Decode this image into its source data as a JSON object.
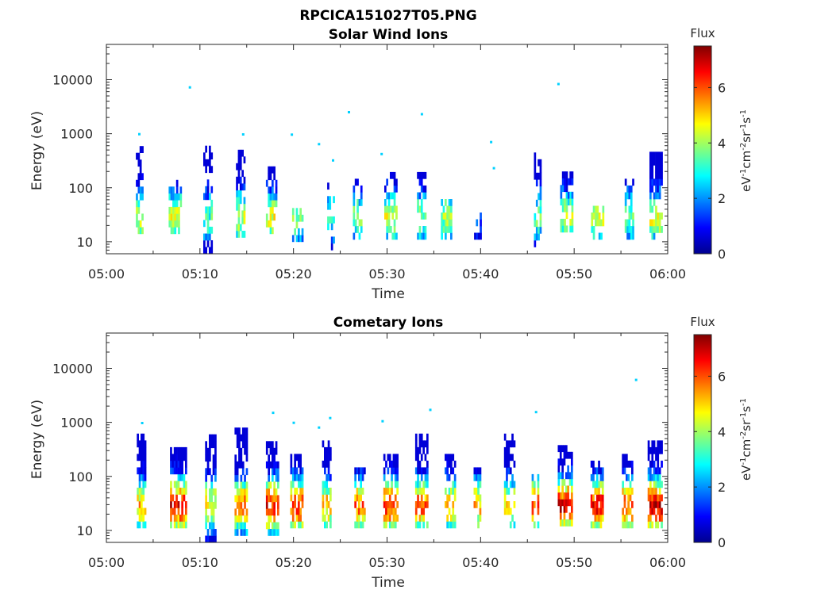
{
  "figure": {
    "title": "RPCICA151027T05.PNG"
  },
  "chart_data": [
    {
      "type": "heatmap",
      "title": "Solar Wind Ions",
      "xlabel": "Time",
      "ylabel": "Energy (eV)",
      "x_ticks": [
        "05:00",
        "05:10",
        "05:20",
        "05:30",
        "05:40",
        "05:50",
        "06:00"
      ],
      "x_range": [
        "05:00",
        "06:00"
      ],
      "y_scale": "log",
      "y_ticks": [
        10,
        100,
        1000,
        10000
      ],
      "y_tick_labels": [
        "10",
        "100",
        "1000",
        "10000"
      ],
      "ylim": [
        6,
        45000
      ],
      "colorbar": {
        "title": "Flux",
        "label": "eV",
        "range": [
          0,
          7.5
        ],
        "ticks": [
          0,
          2,
          4,
          6
        ],
        "tick_labels": [
          "0",
          "2",
          "4",
          "6"
        ],
        "colormap": "jet"
      },
      "colormap_stops": [
        "#00008f",
        "#0000ff",
        "#0080ff",
        "#00ffff",
        "#80ff80",
        "#ffff00",
        "#ff8000",
        "#ff0000",
        "#800000"
      ],
      "bursts": [
        {
          "t": 3.5,
          "w": 0.7,
          "lo": 14,
          "hi": 480,
          "peak": 4.6,
          "dens": 0.55
        },
        {
          "t": 7.3,
          "w": 1.3,
          "lo": 14,
          "hi": 120,
          "peak": 5.0,
          "dens": 0.65
        },
        {
          "t": 10.8,
          "w": 0.9,
          "lo": 6,
          "hi": 500,
          "peak": 3.6,
          "dens": 0.5
        },
        {
          "t": 14.3,
          "w": 0.9,
          "lo": 12,
          "hi": 400,
          "peak": 4.7,
          "dens": 0.6
        },
        {
          "t": 17.6,
          "w": 1.1,
          "lo": 14,
          "hi": 200,
          "peak": 4.9,
          "dens": 0.6
        },
        {
          "t": 20.4,
          "w": 1.1,
          "lo": 10,
          "hi": 40,
          "peak": 4.4,
          "dens": 0.6
        },
        {
          "t": 23.9,
          "w": 0.6,
          "lo": 7,
          "hi": 120,
          "peak": 3.6,
          "dens": 0.45
        },
        {
          "t": 26.8,
          "w": 0.9,
          "lo": 11,
          "hi": 130,
          "peak": 4.1,
          "dens": 0.55
        },
        {
          "t": 30.3,
          "w": 1.2,
          "lo": 11,
          "hi": 150,
          "peak": 4.6,
          "dens": 0.6
        },
        {
          "t": 33.6,
          "w": 0.8,
          "lo": 11,
          "hi": 180,
          "peak": 4.2,
          "dens": 0.55
        },
        {
          "t": 36.3,
          "w": 1.1,
          "lo": 11,
          "hi": 50,
          "peak": 4.3,
          "dens": 0.6
        },
        {
          "t": 39.6,
          "w": 0.6,
          "lo": 11,
          "hi": 30,
          "peak": 1.6,
          "dens": 0.6
        },
        {
          "t": 46.0,
          "w": 0.6,
          "lo": 8,
          "hi": 400,
          "peak": 3.8,
          "dens": 0.5
        },
        {
          "t": 49.1,
          "w": 1.2,
          "lo": 15,
          "hi": 200,
          "peak": 4.6,
          "dens": 0.6
        },
        {
          "t": 52.4,
          "w": 1.2,
          "lo": 11,
          "hi": 45,
          "peak": 4.6,
          "dens": 0.6
        },
        {
          "t": 55.8,
          "w": 0.8,
          "lo": 11,
          "hi": 140,
          "peak": 4.1,
          "dens": 0.55
        },
        {
          "t": 58.7,
          "w": 1.3,
          "lo": 11,
          "hi": 450,
          "peak": 4.8,
          "dens": 0.65
        }
      ],
      "isolated_points": [
        {
          "t": 8.9,
          "e": 7200
        },
        {
          "t": 48.3,
          "e": 8300
        },
        {
          "t": 25.9,
          "e": 2500
        },
        {
          "t": 33.7,
          "e": 2300
        },
        {
          "t": 3.5,
          "e": 980
        },
        {
          "t": 14.6,
          "e": 970
        },
        {
          "t": 19.8,
          "e": 960
        },
        {
          "t": 41.1,
          "e": 700
        },
        {
          "t": 22.7,
          "e": 640
        },
        {
          "t": 29.4,
          "e": 420
        },
        {
          "t": 24.2,
          "e": 320
        },
        {
          "t": 41.4,
          "e": 230
        }
      ]
    },
    {
      "type": "heatmap",
      "title": "Cometary Ions",
      "xlabel": "Time",
      "ylabel": "Energy (eV)",
      "x_ticks": [
        "05:00",
        "05:10",
        "05:20",
        "05:30",
        "05:40",
        "05:50",
        "06:00"
      ],
      "x_range": [
        "05:00",
        "06:00"
      ],
      "y_scale": "log",
      "y_ticks": [
        10,
        100,
        1000,
        10000
      ],
      "y_tick_labels": [
        "10",
        "100",
        "1000",
        "10000"
      ],
      "ylim": [
        6,
        45000
      ],
      "colorbar": {
        "title": "Flux",
        "label": "eV",
        "range": [
          0,
          7.5
        ],
        "ticks": [
          0,
          2,
          4,
          6
        ],
        "tick_labels": [
          "0",
          "2",
          "4",
          "6"
        ],
        "colormap": "jet"
      },
      "colormap_stops": [
        "#00008f",
        "#0000ff",
        "#0080ff",
        "#00ffff",
        "#80ff80",
        "#ffff00",
        "#ff8000",
        "#ff0000",
        "#800000"
      ],
      "bursts": [
        {
          "t": 3.7,
          "w": 0.9,
          "lo": 11,
          "hi": 550,
          "peak": 5.5,
          "dens": 0.7
        },
        {
          "t": 7.6,
          "w": 1.6,
          "lo": 11,
          "hi": 300,
          "peak": 7.0,
          "dens": 0.8
        },
        {
          "t": 11.1,
          "w": 1.1,
          "lo": 6,
          "hi": 500,
          "peak": 5.2,
          "dens": 0.6
        },
        {
          "t": 14.3,
          "w": 1.2,
          "lo": 8,
          "hi": 650,
          "peak": 6.1,
          "dens": 0.7
        },
        {
          "t": 17.7,
          "w": 1.3,
          "lo": 8,
          "hi": 350,
          "peak": 6.9,
          "dens": 0.75
        },
        {
          "t": 20.3,
          "w": 1.3,
          "lo": 11,
          "hi": 250,
          "peak": 6.7,
          "dens": 0.7
        },
        {
          "t": 23.5,
          "w": 0.9,
          "lo": 11,
          "hi": 420,
          "peak": 5.5,
          "dens": 0.6
        },
        {
          "t": 27.0,
          "w": 1.0,
          "lo": 11,
          "hi": 110,
          "peak": 6.1,
          "dens": 0.65
        },
        {
          "t": 30.3,
          "w": 1.4,
          "lo": 11,
          "hi": 200,
          "peak": 6.6,
          "dens": 0.7
        },
        {
          "t": 33.6,
          "w": 1.2,
          "lo": 11,
          "hi": 500,
          "peak": 6.3,
          "dens": 0.7
        },
        {
          "t": 36.7,
          "w": 1.1,
          "lo": 11,
          "hi": 250,
          "peak": 5.6,
          "dens": 0.6
        },
        {
          "t": 39.6,
          "w": 0.7,
          "lo": 11,
          "hi": 120,
          "peak": 5.6,
          "dens": 0.65
        },
        {
          "t": 43.0,
          "w": 1.0,
          "lo": 11,
          "hi": 500,
          "peak": 5.3,
          "dens": 0.55
        },
        {
          "t": 45.8,
          "w": 0.7,
          "lo": 11,
          "hi": 100,
          "peak": 6.4,
          "dens": 0.65
        },
        {
          "t": 49.0,
          "w": 1.5,
          "lo": 12,
          "hi": 350,
          "peak": 7.1,
          "dens": 0.75
        },
        {
          "t": 52.4,
          "w": 1.3,
          "lo": 11,
          "hi": 150,
          "peak": 6.9,
          "dens": 0.75
        },
        {
          "t": 55.6,
          "w": 1.0,
          "lo": 11,
          "hi": 250,
          "peak": 6.5,
          "dens": 0.7
        },
        {
          "t": 58.6,
          "w": 1.5,
          "lo": 11,
          "hi": 450,
          "peak": 7.2,
          "dens": 0.8
        }
      ],
      "isolated_points": [
        {
          "t": 56.6,
          "e": 6100
        },
        {
          "t": 17.8,
          "e": 1500
        },
        {
          "t": 34.6,
          "e": 1700
        },
        {
          "t": 23.9,
          "e": 1200
        },
        {
          "t": 45.9,
          "e": 1550
        },
        {
          "t": 20.0,
          "e": 980
        },
        {
          "t": 29.5,
          "e": 1050
        },
        {
          "t": 3.8,
          "e": 970
        },
        {
          "t": 22.7,
          "e": 800
        }
      ]
    }
  ]
}
